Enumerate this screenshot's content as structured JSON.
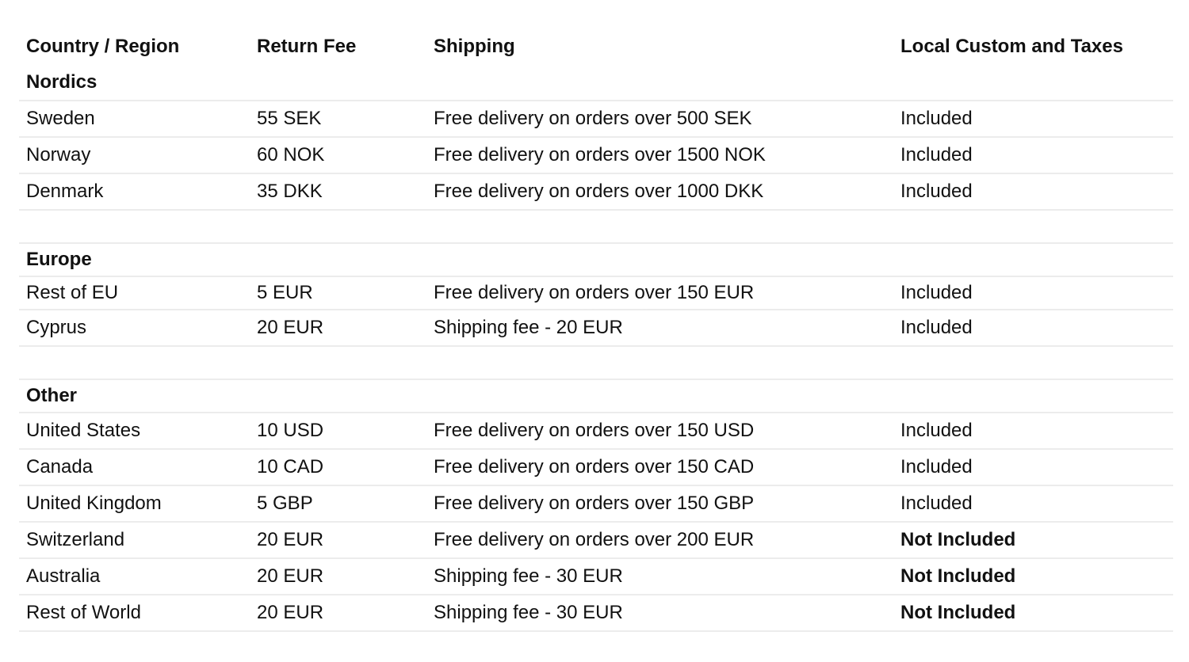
{
  "headers": [
    "Country / Region",
    "Return Fee",
    "Shipping",
    "Local Custom and Taxes"
  ],
  "sections": [
    {
      "title": "Nordics",
      "rows": [
        {
          "country": "Sweden",
          "fee": "55 SEK",
          "shipping": "Free delivery on orders over 500 SEK",
          "taxes": "Included",
          "taxes_bold": false
        },
        {
          "country": "Norway",
          "fee": "60 NOK",
          "shipping": "Free delivery on orders over 1500 NOK",
          "taxes": "Included",
          "taxes_bold": false
        },
        {
          "country": "Denmark",
          "fee": "35 DKK",
          "shipping": "Free delivery on orders over 1000 DKK",
          "taxes": "Included",
          "taxes_bold": false
        }
      ]
    },
    {
      "title": "Europe",
      "rows": [
        {
          "country": "Rest of EU",
          "fee": "5 EUR",
          "shipping": "Free delivery on orders over 150 EUR",
          "taxes": "Included",
          "taxes_bold": false
        },
        {
          "country": "Cyprus",
          "fee": "20 EUR",
          "shipping": "Shipping fee - 20 EUR",
          "taxes": "Included",
          "taxes_bold": false
        }
      ]
    },
    {
      "title": "Other",
      "rows": [
        {
          "country": "United States",
          "fee": "10 USD",
          "shipping": "Free delivery on orders over 150 USD",
          "taxes": "Included",
          "taxes_bold": false
        },
        {
          "country": "Canada",
          "fee": "10 CAD",
          "shipping": "Free delivery on orders over 150 CAD",
          "taxes": "Included",
          "taxes_bold": false
        },
        {
          "country": "United Kingdom",
          "fee": "5 GBP",
          "shipping": "Free delivery on orders over 150 GBP",
          "taxes": "Included",
          "taxes_bold": false
        },
        {
          "country": "Switzerland",
          "fee": "20 EUR",
          "shipping": "Free delivery on orders over 200 EUR",
          "taxes": "Not Included",
          "taxes_bold": true
        },
        {
          "country": "Australia",
          "fee": "20 EUR",
          "shipping": "Shipping fee - 30 EUR",
          "taxes": "Not Included",
          "taxes_bold": true
        },
        {
          "country": "Rest of World",
          "fee": "20 EUR",
          "shipping": "Shipping fee - 30 EUR",
          "taxes": "Not Included",
          "taxes_bold": true
        }
      ]
    }
  ]
}
